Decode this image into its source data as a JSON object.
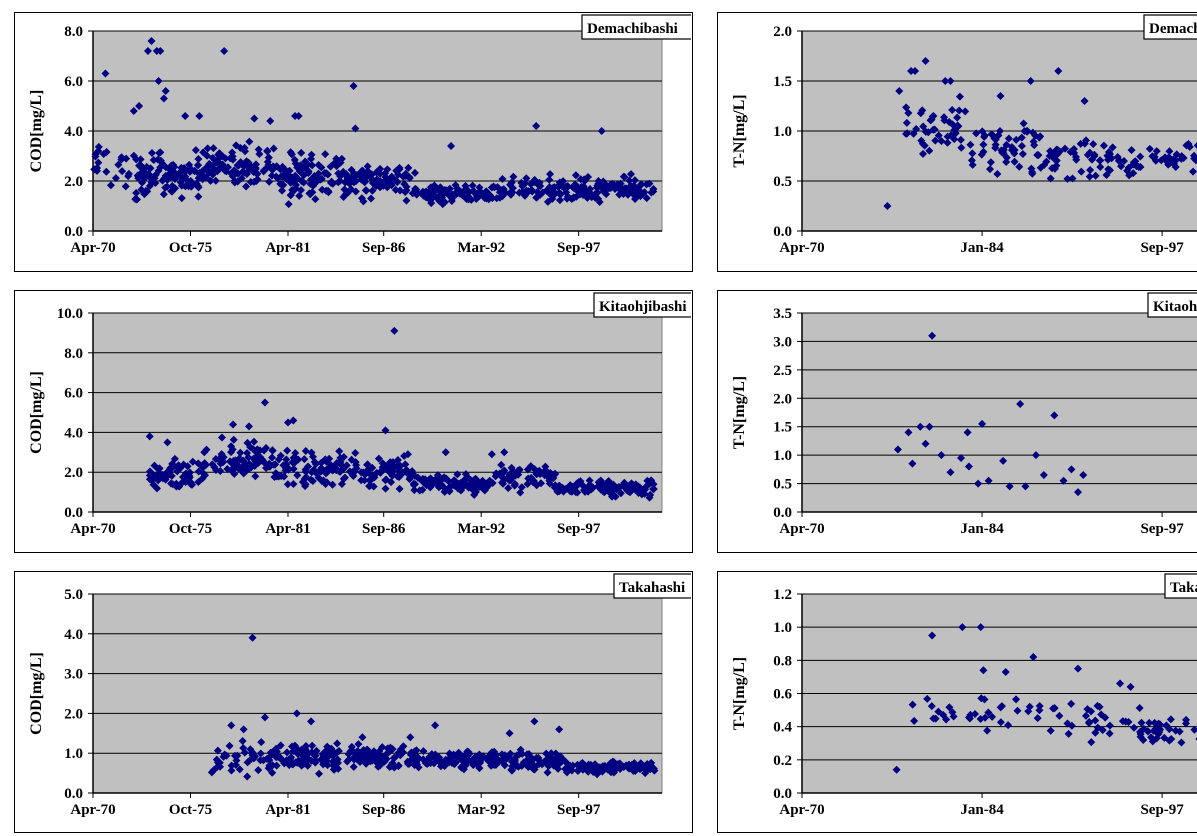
{
  "station_names": [
    "Demachibashi",
    "Kitaohjibashi",
    "Takahashi"
  ],
  "chart_data": [
    {
      "id": "cod-demachibashi",
      "type": "scatter",
      "station": "Demachibashi",
      "ylabel": "COD[mg/L]",
      "ylim": [
        0,
        8
      ],
      "ytick_labels": [
        "0.0",
        "2.0",
        "4.0",
        "6.0",
        "8.0"
      ],
      "xtick_labels": [
        "Apr-70",
        "Oct-75",
        "Apr-81",
        "Sep-86",
        "Mar-92",
        "Sep-97"
      ],
      "grid": true,
      "marker_color": "#000080",
      "groups": [
        {
          "x": [
            1970.3,
            1972.6
          ],
          "median": 2.6,
          "spread": 0.9,
          "n": 20
        },
        {
          "x": [
            1972.6,
            1976.5
          ],
          "median": 2.2,
          "spread": 0.8,
          "n": 110
        },
        {
          "x": [
            1976.5,
            1980.5
          ],
          "median": 2.6,
          "spread": 0.7,
          "n": 95
        },
        {
          "x": [
            1980.5,
            1984.5
          ],
          "median": 2.3,
          "spread": 0.8,
          "n": 100
        },
        {
          "x": [
            1984.5,
            1988.5
          ],
          "median": 2.0,
          "spread": 0.6,
          "n": 90
        },
        {
          "x": [
            1988.5,
            1993.0
          ],
          "median": 1.5,
          "spread": 0.3,
          "n": 100
        },
        {
          "x": [
            1993.0,
            2002.0
          ],
          "median": 1.7,
          "spread": 0.4,
          "n": 170
        }
      ],
      "outliers": [
        [
          1973.6,
          7.6
        ],
        [
          1973.9,
          7.2
        ],
        [
          1974.1,
          7.2
        ],
        [
          1973.4,
          7.2
        ],
        [
          1977.7,
          7.2
        ],
        [
          1971.0,
          6.3
        ],
        [
          1974.0,
          6.0
        ],
        [
          1985.0,
          5.8
        ],
        [
          1974.4,
          5.6
        ],
        [
          1974.3,
          5.3
        ],
        [
          1976.3,
          4.6
        ],
        [
          1972.6,
          4.8
        ],
        [
          1972.9,
          5.0
        ],
        [
          1981.7,
          4.6
        ],
        [
          1981.9,
          4.6
        ],
        [
          1995.3,
          4.2
        ],
        [
          1999.0,
          4.0
        ],
        [
          1985.1,
          4.1
        ],
        [
          1990.5,
          3.4
        ],
        [
          1970.6,
          3.2
        ],
        [
          1975.5,
          4.6
        ],
        [
          1979.4,
          4.5
        ],
        [
          1980.3,
          4.4
        ]
      ]
    },
    {
      "id": "cod-kitaohjibashi",
      "type": "scatter",
      "station": "Kitaohjibashi",
      "ylabel": "COD[mg/L]",
      "ylim": [
        0,
        10
      ],
      "ytick_labels": [
        "0.0",
        "2.0",
        "4.0",
        "6.0",
        "8.0",
        "10.0"
      ],
      "xtick_labels": [
        "Apr-70",
        "Oct-75",
        "Apr-81",
        "Sep-86",
        "Mar-92",
        "Sep-97"
      ],
      "grid": true,
      "marker_color": "#000080",
      "groups": [
        {
          "x": [
            1973.4,
            1976.5
          ],
          "median": 1.8,
          "spread": 0.6,
          "n": 60
        },
        {
          "x": [
            1976.5,
            1980.5
          ],
          "median": 2.6,
          "spread": 0.8,
          "n": 85
        },
        {
          "x": [
            1980.5,
            1984.5
          ],
          "median": 2.2,
          "spread": 0.7,
          "n": 85
        },
        {
          "x": [
            1984.5,
            1988.5
          ],
          "median": 2.0,
          "spread": 0.6,
          "n": 80
        },
        {
          "x": [
            1988.5,
            1993.0
          ],
          "median": 1.4,
          "spread": 0.35,
          "n": 90
        },
        {
          "x": [
            1993.0,
            1996.5
          ],
          "median": 1.8,
          "spread": 0.5,
          "n": 70
        },
        {
          "x": [
            1996.5,
            2002.0
          ],
          "median": 1.2,
          "spread": 0.3,
          "n": 110
        }
      ],
      "outliers": [
        [
          1987.3,
          9.1
        ],
        [
          1980.0,
          5.5
        ],
        [
          1981.6,
          4.6
        ],
        [
          1981.3,
          4.5
        ],
        [
          1973.5,
          3.8
        ],
        [
          1974.5,
          3.5
        ],
        [
          1986.8,
          4.1
        ],
        [
          1979.1,
          4.3
        ],
        [
          1978.2,
          4.4
        ],
        [
          1990.2,
          3.0
        ],
        [
          1992.8,
          2.9
        ],
        [
          1993.5,
          3.0
        ]
      ]
    },
    {
      "id": "cod-takahashi",
      "type": "scatter",
      "station": "Takahashi",
      "ylabel": "COD[mg/L]",
      "ylim": [
        0,
        5
      ],
      "ytick_labels": [
        "0.0",
        "1.0",
        "2.0",
        "3.0",
        "4.0",
        "5.0"
      ],
      "xtick_labels": [
        "Apr-70",
        "Oct-75",
        "Apr-81",
        "Sep-86",
        "Mar-92",
        "Sep-97"
      ],
      "grid": true,
      "marker_color": "#000080",
      "groups": [
        {
          "x": [
            1977.0,
            1980.5
          ],
          "median": 0.85,
          "spread": 0.3,
          "n": 45
        },
        {
          "x": [
            1980.5,
            1984.5
          ],
          "median": 0.9,
          "spread": 0.3,
          "n": 90
        },
        {
          "x": [
            1984.5,
            1988.5
          ],
          "median": 0.9,
          "spread": 0.25,
          "n": 95
        },
        {
          "x": [
            1988.5,
            1993.0
          ],
          "median": 0.85,
          "spread": 0.2,
          "n": 100
        },
        {
          "x": [
            1993.0,
            1997.0
          ],
          "median": 0.8,
          "spread": 0.2,
          "n": 95
        },
        {
          "x": [
            1997.0,
            2002.0
          ],
          "median": 0.65,
          "spread": 0.12,
          "n": 110
        }
      ],
      "outliers": [
        [
          1979.3,
          3.9
        ],
        [
          1981.8,
          2.0
        ],
        [
          1980.0,
          1.9
        ],
        [
          1982.6,
          1.8
        ],
        [
          1978.1,
          1.7
        ],
        [
          1978.8,
          1.6
        ],
        [
          1995.2,
          1.8
        ],
        [
          1996.6,
          1.6
        ],
        [
          1989.6,
          1.7
        ],
        [
          1993.8,
          1.5
        ],
        [
          1985.5,
          1.4
        ],
        [
          1988.2,
          1.4
        ]
      ]
    },
    {
      "id": "tn-demachibashi",
      "type": "scatter",
      "station": "Demachibashi",
      "ylabel": "T-N[mg/L]",
      "ylim": [
        0,
        2
      ],
      "ytick_labels": [
        "0.0",
        "0.5",
        "1.0",
        "1.5",
        "2.0"
      ],
      "xtick_labels": [
        "Apr-70",
        "Jan-84",
        "Sep-97"
      ],
      "grid": true,
      "marker_color": "#000080",
      "groups": [
        {
          "x": [
            1978.0,
            1983.0
          ],
          "median": 1.0,
          "spread": 0.22,
          "n": 45
        },
        {
          "x": [
            1983.0,
            1987.5
          ],
          "median": 0.85,
          "spread": 0.2,
          "n": 45
        },
        {
          "x": [
            1987.5,
            1992.5
          ],
          "median": 0.75,
          "spread": 0.18,
          "n": 45
        },
        {
          "x": [
            1992.5,
            2002.0
          ],
          "median": 0.7,
          "spread": 0.15,
          "n": 75
        }
      ],
      "outliers": [
        [
          1976.8,
          0.25
        ],
        [
          1977.7,
          1.4
        ],
        [
          1978.6,
          1.6
        ],
        [
          1978.9,
          1.6
        ],
        [
          1979.7,
          1.7
        ],
        [
          1980.3,
          1.15
        ],
        [
          1981.2,
          1.5
        ],
        [
          1981.6,
          1.5
        ],
        [
          1987.7,
          1.5
        ],
        [
          1989.8,
          1.6
        ],
        [
          1991.8,
          1.3
        ],
        [
          1985.4,
          1.35
        ]
      ]
    },
    {
      "id": "tn-kitaohjibashi",
      "type": "scatter",
      "station": "Kitaohjibashi",
      "ylabel": "T-N[mg/L]",
      "ylim": [
        0,
        3.5
      ],
      "ytick_labels": [
        "0.0",
        "0.5",
        "1.0",
        "1.5",
        "2.0",
        "2.5",
        "3.0",
        "3.5"
      ],
      "xtick_labels": [
        "Apr-70",
        "Jan-84",
        "Sep-97"
      ],
      "grid": true,
      "marker_color": "#000080",
      "groups": [],
      "points": [
        [
          1980.2,
          3.1
        ],
        [
          1977.6,
          1.1
        ],
        [
          1978.4,
          1.4
        ],
        [
          1979.3,
          1.5
        ],
        [
          1980.0,
          1.5
        ],
        [
          1978.7,
          0.85
        ],
        [
          1979.7,
          1.2
        ],
        [
          1980.9,
          1.0
        ],
        [
          1981.6,
          0.7
        ],
        [
          1982.4,
          0.95
        ],
        [
          1983.0,
          0.8
        ],
        [
          1982.9,
          1.4
        ],
        [
          1984.0,
          1.55
        ],
        [
          1983.7,
          0.5
        ],
        [
          1984.5,
          0.55
        ],
        [
          1985.6,
          0.9
        ],
        [
          1986.1,
          0.45
        ],
        [
          1986.9,
          1.9
        ],
        [
          1987.3,
          0.45
        ],
        [
          1988.1,
          1.0
        ],
        [
          1988.7,
          0.65
        ],
        [
          1989.5,
          1.7
        ],
        [
          1990.2,
          0.55
        ],
        [
          1990.8,
          0.75
        ],
        [
          1991.3,
          0.35
        ],
        [
          1991.7,
          0.65
        ]
      ],
      "outliers": []
    },
    {
      "id": "tn-takahashi",
      "type": "scatter",
      "station": "Takahashi",
      "ylabel": "T-N[mg/L]",
      "ylim": [
        0,
        1.2
      ],
      "ytick_labels": [
        "0.0",
        "0.2",
        "0.4",
        "0.6",
        "0.8",
        "1.0",
        "1.2"
      ],
      "xtick_labels": [
        "Apr-70",
        "Jan-84",
        "Sep-97"
      ],
      "grid": true,
      "marker_color": "#000080",
      "groups": [
        {
          "x": [
            1978.5,
            1984.0
          ],
          "median": 0.5,
          "spread": 0.12,
          "n": 18
        },
        {
          "x": [
            1984.0,
            1990.0
          ],
          "median": 0.5,
          "spread": 0.12,
          "n": 20
        },
        {
          "x": [
            1990.0,
            1996.0
          ],
          "median": 0.45,
          "spread": 0.1,
          "n": 25
        },
        {
          "x": [
            1996.0,
            2002.0
          ],
          "median": 0.37,
          "spread": 0.08,
          "n": 40
        }
      ],
      "outliers": [
        [
          1977.5,
          0.14
        ],
        [
          1980.2,
          0.95
        ],
        [
          1982.5,
          1.0
        ],
        [
          1983.9,
          1.0
        ],
        [
          1987.9,
          0.82
        ],
        [
          1991.3,
          0.75
        ],
        [
          1984.1,
          0.74
        ],
        [
          1985.8,
          0.73
        ],
        [
          1994.5,
          0.66
        ],
        [
          1995.3,
          0.64
        ]
      ]
    }
  ]
}
